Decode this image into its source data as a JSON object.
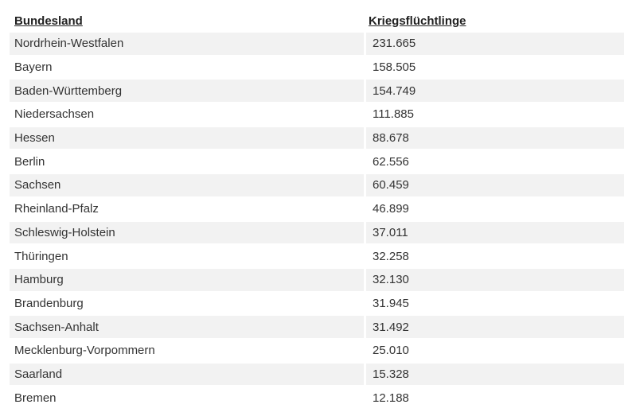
{
  "table": {
    "headers": [
      "Bundesland",
      "Kriegsflüchtlinge"
    ],
    "rows": [
      [
        "Nordrhein-Westfalen",
        "231.665"
      ],
      [
        "Bayern",
        "158.505"
      ],
      [
        "Baden-Württemberg",
        "154.749"
      ],
      [
        "Niedersachsen",
        "111.885"
      ],
      [
        "Hessen",
        "88.678"
      ],
      [
        "Berlin",
        "62.556"
      ],
      [
        "Sachsen",
        "60.459"
      ],
      [
        "Rheinland-Pfalz",
        "46.899"
      ],
      [
        "Schleswig-Holstein",
        "37.011"
      ],
      [
        "Thüringen",
        "32.258"
      ],
      [
        "Hamburg",
        "32.130"
      ],
      [
        "Brandenburg",
        "31.945"
      ],
      [
        "Sachsen-Anhalt",
        "31.492"
      ],
      [
        "Mecklenburg-Vorpommern",
        "25.010"
      ],
      [
        "Saarland",
        "15.328"
      ],
      [
        "Bremen",
        "12.188"
      ]
    ]
  },
  "colors": {
    "row_shade": "#f2f2f2",
    "text": "#333333"
  }
}
